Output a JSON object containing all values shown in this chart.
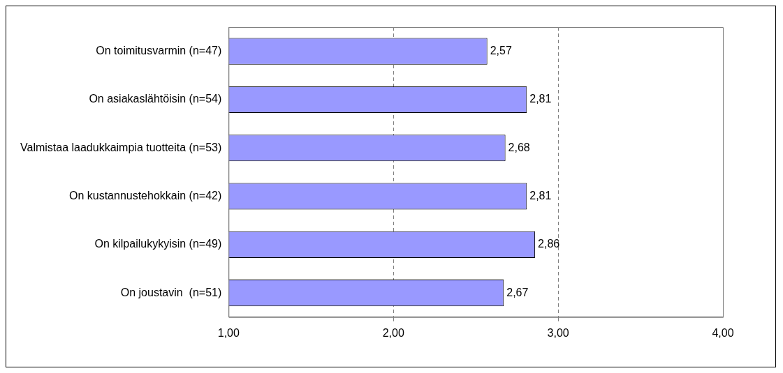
{
  "chart_data": {
    "type": "bar",
    "orientation": "horizontal",
    "categories": [
      "On toimitusvarmin (n=47)",
      "On asiakaslähtöisin (n=54)",
      "Valmistaa laadukkaimpia tuotteita (n=53)",
      "On kustannustehokkain (n=42)",
      "On kilpailukykyisin (n=49)",
      "On joustavin  (n=51)"
    ],
    "values": [
      2.57,
      2.81,
      2.68,
      2.81,
      2.86,
      2.67
    ],
    "value_labels": [
      "2,57",
      "2,81",
      "2,68",
      "2,81",
      "2,86",
      "2,67"
    ],
    "color": "#9999ff",
    "xlim": [
      1,
      4
    ],
    "xticks": [
      {
        "value": 1,
        "label": "1,00"
      },
      {
        "value": 2,
        "label": "2,00"
      },
      {
        "value": 3,
        "label": "3,00"
      },
      {
        "value": 4,
        "label": "4,00"
      }
    ],
    "grid": "x",
    "legend": false
  }
}
